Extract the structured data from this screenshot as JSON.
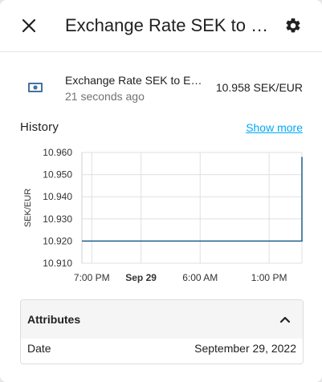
{
  "dialog": {
    "title": "Exchange Rate SEK to EUR",
    "close_icon": "close-icon",
    "settings_icon": "gear-icon"
  },
  "entity": {
    "icon": "cash-icon",
    "name": "Exchange Rate SEK to EUR",
    "last_changed": "21 seconds ago",
    "state": "10.958 SEK/EUR"
  },
  "history": {
    "title": "History",
    "show_more_label": "Show more"
  },
  "chart_data": {
    "type": "line",
    "title": "",
    "ylabel": "SEK/EUR",
    "xlabel": "",
    "ylim": [
      10.91,
      10.96
    ],
    "yticks": [
      "10.960",
      "10.950",
      "10.940",
      "10.930",
      "10.920",
      "10.910"
    ],
    "xticks": [
      {
        "label": "7:00 PM",
        "bold": false
      },
      {
        "label": "Sep 29",
        "bold": true
      },
      {
        "label": "6:00 AM",
        "bold": false
      },
      {
        "label": "1:00 PM",
        "bold": false
      }
    ],
    "grid": true,
    "series": [
      {
        "color": "#1f5f8b",
        "points": [
          {
            "x": "Sep 28 6:00 PM",
            "y": 10.92
          },
          {
            "x": "Sep 29 4:20 PM",
            "y": 10.92
          },
          {
            "x": "Sep 29 4:20 PM",
            "y": 10.958
          }
        ]
      }
    ]
  },
  "attributes": {
    "title": "Attributes",
    "chevron_icon": "chevron-up-icon",
    "rows": [
      {
        "key": "Date",
        "value": "September 29, 2022"
      }
    ]
  }
}
